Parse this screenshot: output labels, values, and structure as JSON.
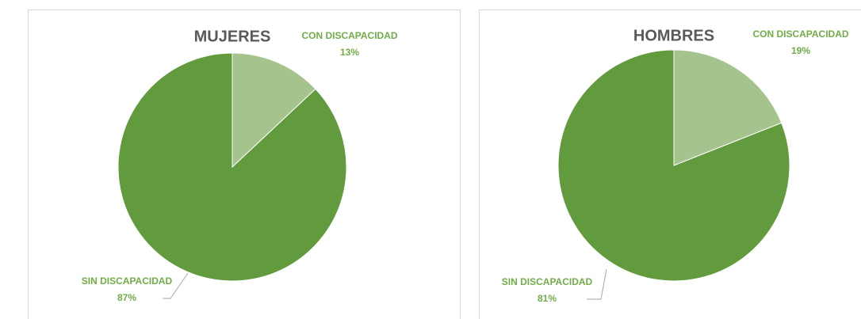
{
  "chart_data": [
    {
      "type": "pie",
      "title": "MUJERES",
      "categories": [
        "CON DISCAPACIDAD",
        "SIN DISCAPACIDAD"
      ],
      "values": [
        13,
        87
      ],
      "value_labels": [
        "13%",
        "87%"
      ],
      "colors": [
        "#a4c38d",
        "#629a3e"
      ]
    },
    {
      "type": "pie",
      "title": "HOMBRES",
      "categories": [
        "CON DISCAPACIDAD",
        "SIN DISCAPACIDAD"
      ],
      "values": [
        19,
        81
      ],
      "value_labels": [
        "19%",
        "81%"
      ],
      "colors": [
        "#a4c38d",
        "#629a3e"
      ]
    }
  ]
}
